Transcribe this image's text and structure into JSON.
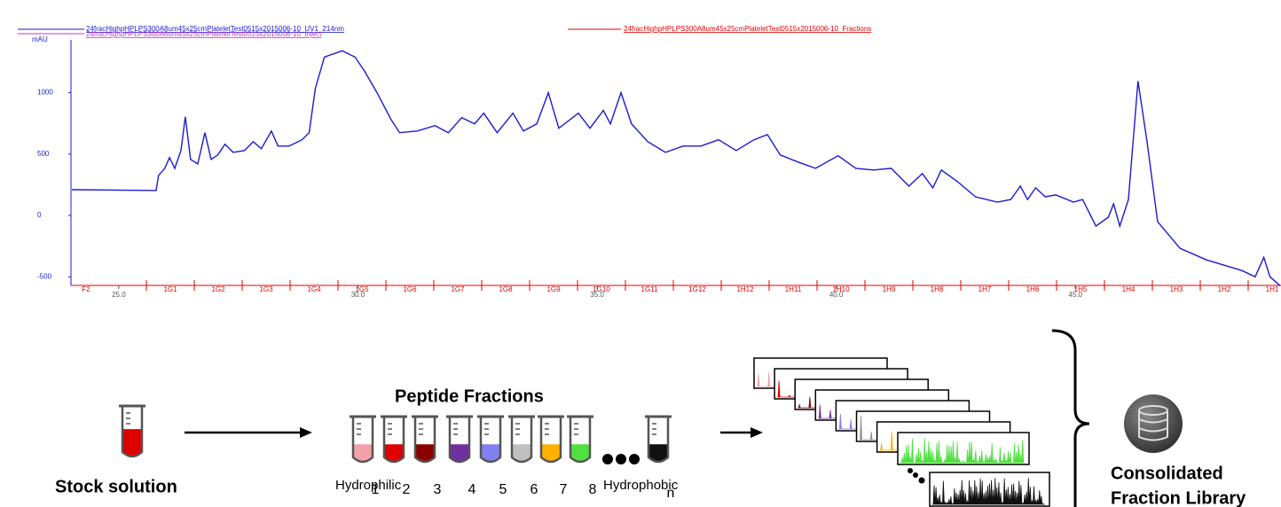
{
  "chart_data": {
    "type": "line",
    "ylabel": "mAU",
    "x": [
      24.02,
      25.78,
      25.83,
      25.96,
      26.06,
      26.17,
      26.3,
      26.39,
      26.5,
      26.65,
      26.8,
      26.93,
      27.07,
      27.22,
      27.39,
      27.63,
      27.81,
      27.98,
      28.19,
      28.33,
      28.56,
      28.83,
      28.98,
      29.11,
      29.3,
      29.67,
      29.94,
      30.13,
      30.4,
      30.69,
      30.87,
      31.24,
      31.61,
      31.89,
      32.17,
      32.44,
      32.63,
      32.91,
      33.24,
      33.46,
      33.74,
      33.98,
      34.2,
      34.61,
      34.85,
      35.13,
      35.28,
      35.5,
      35.72,
      36.06,
      36.43,
      36.8,
      37.17,
      37.54,
      37.91,
      38.28,
      38.56,
      38.83,
      39.2,
      39.57,
      40.04,
      40.41,
      40.78,
      41.15,
      41.52,
      41.8,
      42.02,
      42.2,
      42.54,
      42.91,
      43.37,
      43.65,
      43.85,
      44.0,
      44.17,
      44.37,
      44.59,
      44.96,
      45.15,
      45.43,
      45.69,
      45.8,
      45.93,
      46.11,
      46.31,
      46.5,
      46.72,
      47.19,
      47.74,
      48.48,
      48.76,
      48.94,
      49.07,
      49.28
    ],
    "series": [
      {
        "name": "24fracHighpHPLPS300A8um45x25cmPlateletTest0515x2015006-10_UV1_214nm",
        "color": "#1a1ad6",
        "values": [
          210,
          203,
          326,
          384,
          471,
          384,
          529,
          804,
          457,
          420,
          674,
          457,
          493,
          580,
          514,
          529,
          601,
          543,
          688,
          565,
          565,
          616,
          674,
          1036,
          1290,
          1341,
          1290,
          1181,
          1000,
          783,
          674,
          688,
          732,
          674,
          797,
          746,
          833,
          674,
          833,
          688,
          746,
          1000,
          710,
          833,
          710,
          855,
          746,
          1000,
          746,
          601,
          514,
          565,
          565,
          616,
          529,
          616,
          659,
          493,
          435,
          384,
          486,
          384,
          370,
          384,
          239,
          341,
          225,
          370,
          275,
          152,
          109,
          130,
          239,
          130,
          225,
          152,
          167,
          109,
          130,
          -87,
          -14,
          94,
          -87,
          130,
          1094,
          601,
          -51,
          -268,
          -362,
          -449,
          -500,
          -341,
          -500,
          -572
        ]
      }
    ],
    "other_traces": [
      {
        "name": "24fracHighpHPLPS300A8um45x25cmPlateletTest0515x2015006-10_Inject",
        "color": "#cc33cc"
      },
      {
        "name": "24fracHighpHPLPS300A8um45x25cmPlateletTest0515x2015006-10_Fractions",
        "color": "#e60000"
      }
    ],
    "xlim": [
      24.0,
      49.3
    ],
    "ylim": [
      -570,
      1430
    ],
    "xticks": [
      {
        "value": 25,
        "label": "25.0"
      },
      {
        "value": 30,
        "label": "30.0"
      },
      {
        "value": 35,
        "label": "35.0"
      },
      {
        "value": 40,
        "label": "40.0"
      },
      {
        "value": 45,
        "label": "45.0"
      }
    ],
    "yticks": [
      -500,
      0,
      500,
      1000
    ],
    "fraction_labels": [
      "F2",
      "1G1",
      "1G2",
      "1G3",
      "1G4",
      "1G5",
      "1G6",
      "1G7",
      "1G8",
      "1G9",
      "1G10",
      "1G11",
      "1G12",
      "1H12",
      "1H11",
      "1H10",
      "1H9",
      "1H8",
      "1H7",
      "1H6",
      "1H5",
      "1H4",
      "1H3",
      "1H2",
      "1H1"
    ]
  },
  "diagram": {
    "stock_label": "Stock solution",
    "fractions_title": "Peptide Fractions",
    "tube_numbers": [
      "1",
      "2",
      "3",
      "4",
      "5",
      "6",
      "7",
      "8",
      "n"
    ],
    "hydrophilic": "Hydrophilic",
    "hydrophobic": "Hydrophobic",
    "library_label": [
      "Consolidated",
      "Fraction Library"
    ]
  }
}
